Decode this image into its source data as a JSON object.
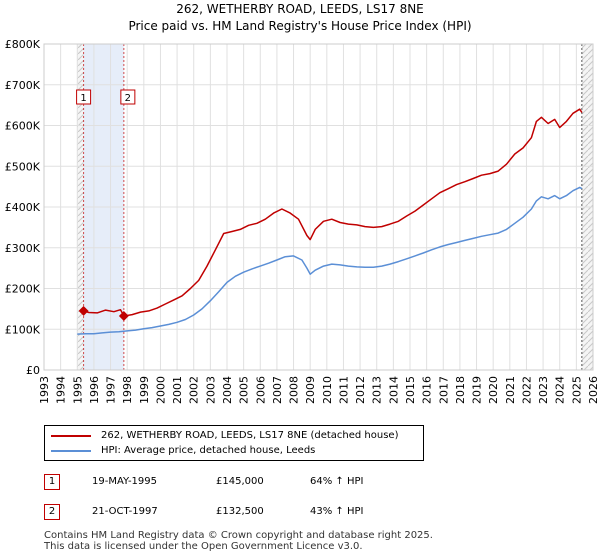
{
  "chart_data": {
    "type": "line",
    "title": "262, WETHERBY ROAD, LEEDS, LS17 8NE",
    "subtitle": "Price paid vs. HM Land Registry's House Price Index (HPI)",
    "xlim": [
      1993,
      2026
    ],
    "ylim": [
      0,
      800000
    ],
    "x_ticks": [
      "1993",
      "1994",
      "1995",
      "1996",
      "1997",
      "1998",
      "1999",
      "2000",
      "2001",
      "2002",
      "2003",
      "2004",
      "2005",
      "2006",
      "2007",
      "2008",
      "2009",
      "2010",
      "2011",
      "2012",
      "2013",
      "2014",
      "2015",
      "2016",
      "2017",
      "2018",
      "2019",
      "2020",
      "2021",
      "2022",
      "2023",
      "2024",
      "2025",
      "2026"
    ],
    "y_ticks": [
      {
        "value": 0,
        "label": "£0"
      },
      {
        "value": 100000,
        "label": "£100K"
      },
      {
        "value": 200000,
        "label": "£200K"
      },
      {
        "value": 300000,
        "label": "£300K"
      },
      {
        "value": 400000,
        "label": "£400K"
      },
      {
        "value": 500000,
        "label": "£500K"
      },
      {
        "value": 600000,
        "label": "£600K"
      },
      {
        "value": 700000,
        "label": "£700K"
      },
      {
        "value": 800000,
        "label": "£800K"
      }
    ],
    "grid": true,
    "shaded_ranges": [
      [
        1995.0,
        1995.38
      ],
      [
        1995.38,
        1997.8
      ],
      [
        2025.33,
        2026
      ]
    ],
    "series": [
      {
        "name": "262, WETHERBY ROAD, LEEDS, LS17 8NE (detached house)",
        "color": "#c00000",
        "x": [
          1995.38,
          1995.7,
          1996.2,
          1996.7,
          1997.2,
          1997.6,
          1997.8,
          1998.3,
          1998.8,
          1999.3,
          1999.8,
          2000.3,
          2000.8,
          2001.3,
          2001.8,
          2002.3,
          2002.8,
          2003.3,
          2003.8,
          2004.3,
          2004.8,
          2005.3,
          2005.8,
          2006.3,
          2006.8,
          2007.3,
          2007.8,
          2008.3,
          2008.8,
          2009.0,
          2009.3,
          2009.8,
          2010.3,
          2010.8,
          2011.3,
          2011.8,
          2012.3,
          2012.8,
          2013.3,
          2013.8,
          2014.3,
          2014.8,
          2015.3,
          2015.8,
          2016.3,
          2016.8,
          2017.3,
          2017.8,
          2018.3,
          2018.8,
          2019.3,
          2019.8,
          2020.3,
          2020.8,
          2021.3,
          2021.8,
          2022.3,
          2022.6,
          2022.9,
          2023.3,
          2023.7,
          2024.0,
          2024.4,
          2024.8,
          2025.2,
          2025.33
        ],
        "values": [
          145000,
          141000,
          140000,
          147000,
          143000,
          148000,
          132500,
          136000,
          142000,
          145000,
          152000,
          162000,
          172000,
          182000,
          200000,
          220000,
          255000,
          295000,
          335000,
          340000,
          345000,
          355000,
          360000,
          370000,
          385000,
          395000,
          385000,
          370000,
          330000,
          320000,
          345000,
          365000,
          370000,
          362000,
          358000,
          356000,
          352000,
          350000,
          352000,
          358000,
          365000,
          378000,
          390000,
          405000,
          420000,
          435000,
          445000,
          455000,
          462000,
          470000,
          478000,
          482000,
          488000,
          505000,
          530000,
          545000,
          570000,
          610000,
          620000,
          605000,
          615000,
          595000,
          610000,
          630000,
          640000,
          632000
        ]
      },
      {
        "name": "HPI: Average price, detached house, Leeds",
        "color": "#5b8fd6",
        "x": [
          1995.0,
          1995.5,
          1996.0,
          1996.5,
          1997.0,
          1997.5,
          1998.0,
          1998.5,
          1999.0,
          1999.5,
          2000.0,
          2000.5,
          2001.0,
          2001.5,
          2002.0,
          2002.5,
          2003.0,
          2003.5,
          2004.0,
          2004.5,
          2005.0,
          2005.5,
          2006.0,
          2006.5,
          2007.0,
          2007.5,
          2008.0,
          2008.5,
          2008.8,
          2009.0,
          2009.3,
          2009.8,
          2010.3,
          2010.8,
          2011.3,
          2011.8,
          2012.3,
          2012.8,
          2013.3,
          2013.8,
          2014.3,
          2014.8,
          2015.3,
          2015.8,
          2016.3,
          2016.8,
          2017.3,
          2017.8,
          2018.3,
          2018.8,
          2019.3,
          2019.8,
          2020.3,
          2020.8,
          2021.3,
          2021.8,
          2022.3,
          2022.6,
          2022.9,
          2023.3,
          2023.7,
          2024.0,
          2024.4,
          2024.8,
          2025.2,
          2025.33
        ],
        "values": [
          88000,
          89000,
          89000,
          91000,
          93000,
          94000,
          96000,
          98000,
          101000,
          104000,
          108000,
          112000,
          117000,
          124000,
          135000,
          150000,
          170000,
          192000,
          215000,
          230000,
          240000,
          248000,
          255000,
          262000,
          270000,
          278000,
          280000,
          270000,
          250000,
          235000,
          245000,
          255000,
          260000,
          258000,
          255000,
          253000,
          252000,
          252000,
          255000,
          260000,
          266000,
          273000,
          280000,
          287000,
          295000,
          302000,
          308000,
          313000,
          318000,
          323000,
          328000,
          332000,
          336000,
          345000,
          360000,
          375000,
          395000,
          415000,
          425000,
          420000,
          428000,
          420000,
          428000,
          440000,
          448000,
          445000
        ]
      }
    ],
    "sales": [
      {
        "label": "1",
        "date": "19-MAY-1995",
        "x": 1995.38,
        "price": 145000,
        "price_label": "£145,000",
        "hpi": "64% ↑ HPI"
      },
      {
        "label": "2",
        "date": "21-OCT-1997",
        "x": 1997.8,
        "price": 132500,
        "price_label": "£132,500",
        "hpi": "43% ↑ HPI"
      }
    ]
  },
  "footer": {
    "line1": "Contains HM Land Registry data © Crown copyright and database right 2025.",
    "line2": "This data is licensed under the Open Government Licence v3.0."
  }
}
